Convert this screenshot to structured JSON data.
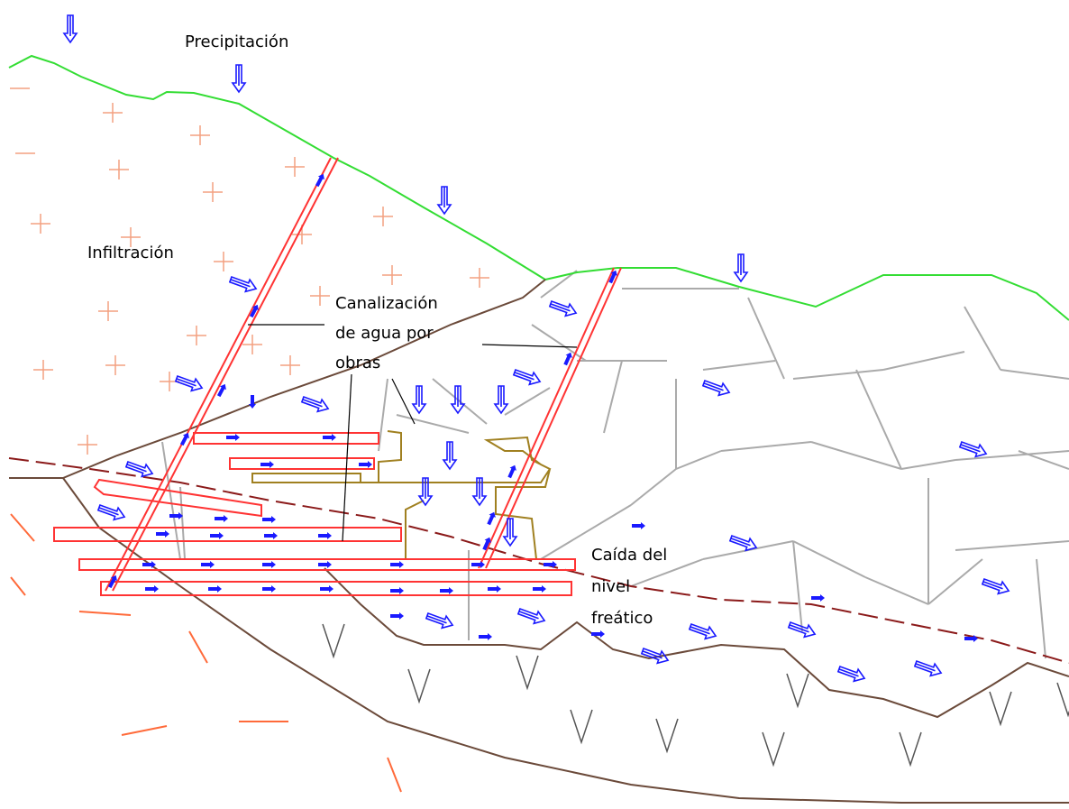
{
  "labels": {
    "precipitation": "Precipitación",
    "infiltration": "Infiltración",
    "channeling": [
      "Canalización",
      "de agua por",
      "obras"
    ],
    "water_table_drop": [
      "Caída del",
      "nivel",
      "freático"
    ]
  }
}
